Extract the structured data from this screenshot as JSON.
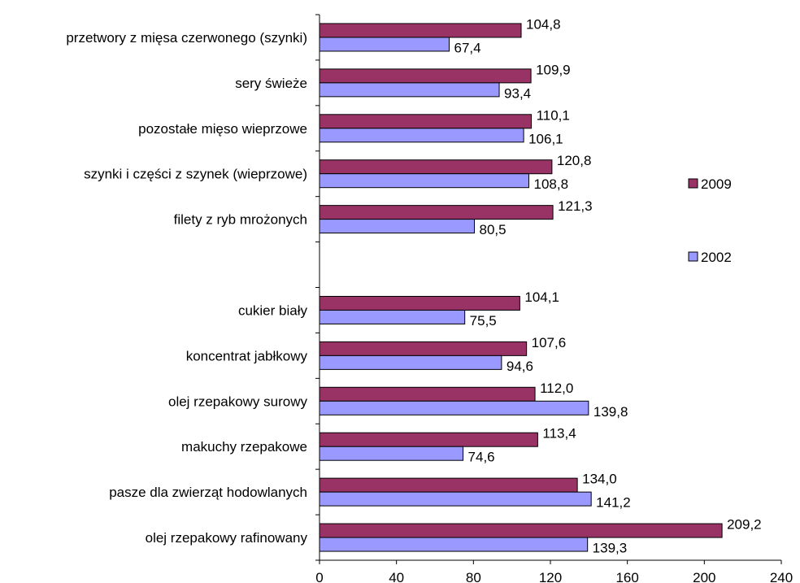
{
  "chart_data": {
    "type": "bar",
    "orientation": "horizontal",
    "title": "",
    "xlabel": "",
    "ylabel": "",
    "xlim": [
      0,
      240
    ],
    "xticks": [
      0,
      40,
      80,
      120,
      160,
      200,
      240
    ],
    "categories": [
      "przetwory z mięsa czerwonego (szynki)",
      "sery świeże",
      "pozostałe mięso wieprzowe",
      "szynki i części z szynek (wieprzowe)",
      "filety z ryb mrożonych",
      "",
      "cukier biały",
      "koncentrat jabłkowy",
      "olej rzepakowy surowy",
      "makuchy rzepakowe",
      "pasze dla zwierząt hodowlanych",
      "olej rzepakowy rafinowany"
    ],
    "series": [
      {
        "name": "2009",
        "color": "#993366",
        "values": [
          104.8,
          109.9,
          110.1,
          120.8,
          121.3,
          null,
          104.1,
          107.6,
          112.0,
          113.4,
          134.0,
          209.2
        ],
        "labels": [
          "104,8",
          "109,9",
          "110,1",
          "120,8",
          "121,3",
          "",
          "104,1",
          "107,6",
          "112,0",
          "113,4",
          "134,0",
          "209,2"
        ]
      },
      {
        "name": "2002",
        "color": "#9999ff",
        "values": [
          67.4,
          93.4,
          106.1,
          108.8,
          80.5,
          null,
          75.5,
          94.6,
          139.8,
          74.6,
          141.2,
          139.3
        ],
        "labels": [
          "67,4",
          "93,4",
          "106,1",
          "108,8",
          "80,5",
          "",
          "75,5",
          "94,6",
          "139,8",
          "74,6",
          "141,2",
          "139,3"
        ]
      }
    ],
    "grid": false,
    "legend": {
      "placement": "right"
    }
  }
}
